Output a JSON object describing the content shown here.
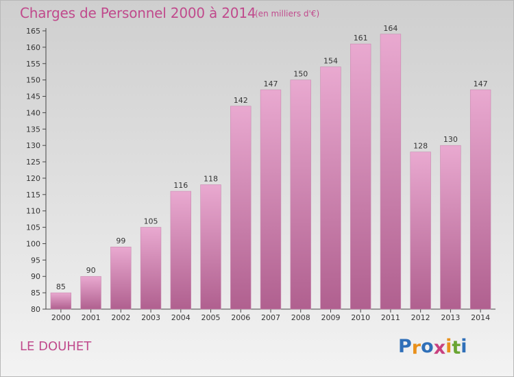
{
  "header": {
    "title": "Charges de Personnel 2000 à 2014",
    "unit": "(en milliers d'€)"
  },
  "footer": {
    "commune": "LE DOUHET",
    "logo_letters": [
      "P",
      "r",
      "o",
      "x",
      "i",
      "t",
      "i"
    ],
    "logo_colors": [
      "#2f6fb8",
      "#e8901c",
      "#2f6fb8",
      "#c8407f",
      "#e8901c",
      "#6aa533",
      "#2f6fb8"
    ]
  },
  "colors": {
    "accent": "#c04a8c",
    "bar_top": "#e9a9d0",
    "bar_bottom": "#b0608f"
  },
  "chart_data": {
    "type": "bar",
    "title": "Charges de Personnel 2000 à 2014",
    "subtitle": "(en milliers d'€)",
    "categories": [
      "2000",
      "2001",
      "2002",
      "2003",
      "2004",
      "2005",
      "2006",
      "2007",
      "2008",
      "2009",
      "2010",
      "2011",
      "2012",
      "2013",
      "2014"
    ],
    "values": [
      85,
      90,
      99,
      105,
      116,
      118,
      142,
      147,
      150,
      154,
      161,
      164,
      128,
      130,
      147
    ],
    "ylim": [
      80,
      165
    ],
    "yticks": [
      80,
      85,
      90,
      95,
      100,
      105,
      110,
      115,
      120,
      125,
      130,
      135,
      140,
      145,
      150,
      155,
      160,
      165
    ],
    "grid": false,
    "legend": "none"
  }
}
